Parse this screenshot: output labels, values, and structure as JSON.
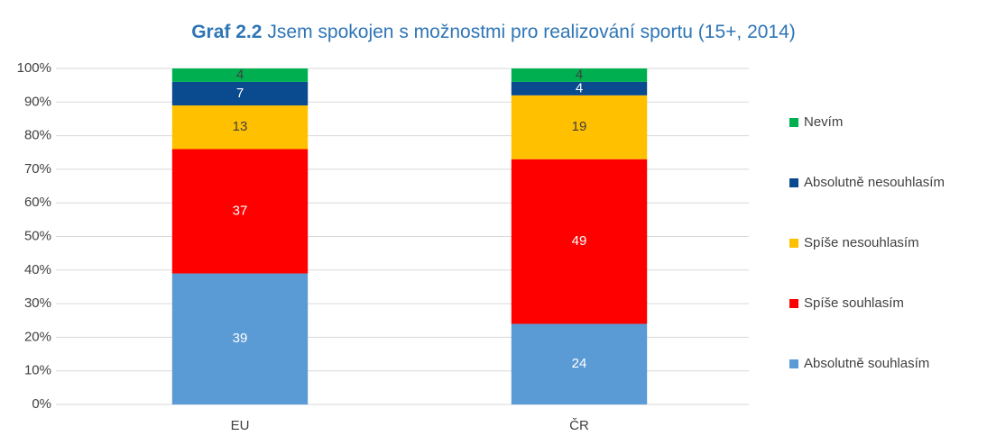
{
  "chart_data": {
    "type": "stacked_bar",
    "title_bold": "Graf 2.2",
    "title": "Jsem spokojen s možnostmi pro realizování sportu (15+, 2014)",
    "categories": [
      "EU",
      "ČR"
    ],
    "series": [
      {
        "name": "Absolutně souhlasím",
        "color": "#5b9bd5",
        "label_color": "#ffffff",
        "values": [
          39,
          24
        ]
      },
      {
        "name": "Spíše souhlasím",
        "color": "#ff0000",
        "label_color": "#ffffff",
        "values": [
          37,
          49
        ]
      },
      {
        "name": "Spíše nesouhlasím",
        "color": "#ffc000",
        "label_color": "#404040",
        "values": [
          13,
          19
        ]
      },
      {
        "name": "Absolutně nesouhlasím",
        "color": "#0a4a8f",
        "label_color": "#ffffff",
        "values": [
          7,
          4
        ]
      },
      {
        "name": "Nevím",
        "color": "#00b050",
        "label_color": "#404040",
        "values": [
          4,
          4
        ]
      }
    ],
    "ylim": [
      0,
      100
    ],
    "yticks": [
      {
        "value": 0,
        "label": "0%"
      },
      {
        "value": 10,
        "label": "10%"
      },
      {
        "value": 20,
        "label": "20%"
      },
      {
        "value": 30,
        "label": "30%"
      },
      {
        "value": 40,
        "label": "40%"
      },
      {
        "value": 50,
        "label": "50%"
      },
      {
        "value": 60,
        "label": "60%"
      },
      {
        "value": 70,
        "label": "70%"
      },
      {
        "value": 80,
        "label": "80%"
      },
      {
        "value": 90,
        "label": "90%"
      },
      {
        "value": 100,
        "label": "100%"
      }
    ],
    "grid": true,
    "legend": "right"
  }
}
